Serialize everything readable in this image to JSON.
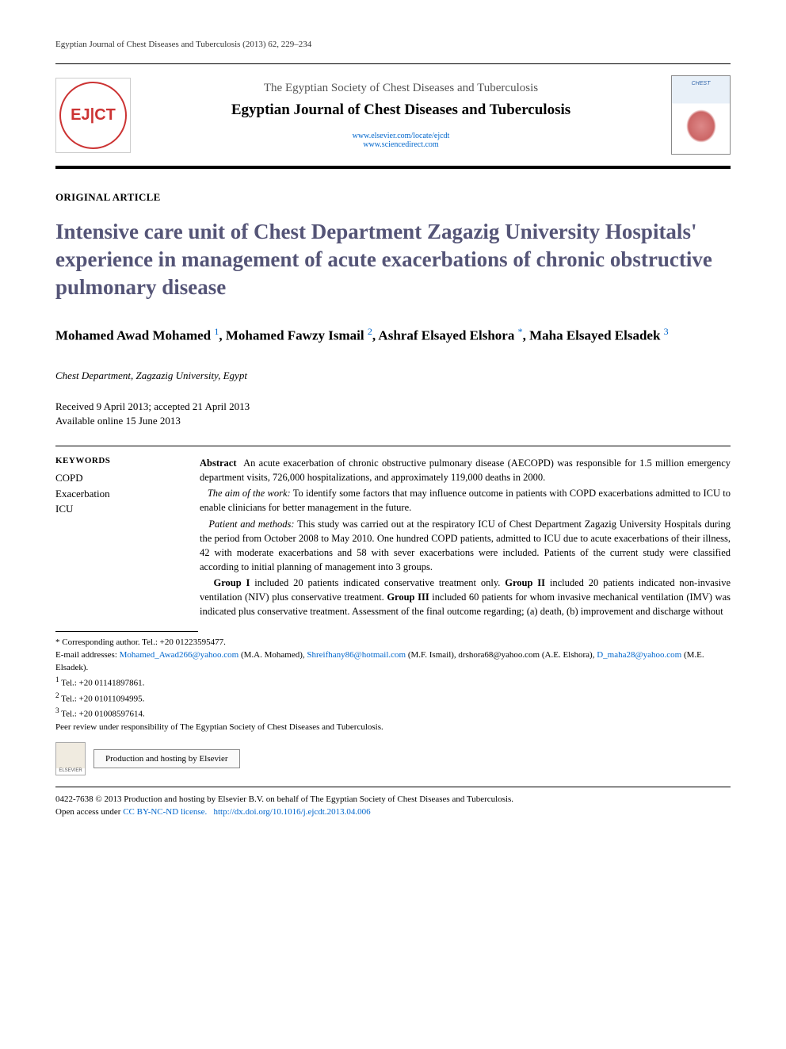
{
  "running_head": "Egyptian Journal of Chest Diseases and Tuberculosis (2013) 62, 229–234",
  "masthead": {
    "logo_text": "EJ|CT",
    "society": "The Egyptian Society of Chest Diseases and Tuberculosis",
    "journal": "Egyptian Journal of Chest Diseases and Tuberculosis",
    "link1": "www.elsevier.com/locate/ejcdt",
    "link2": "www.sciencedirect.com",
    "cover_caption": "CHEST"
  },
  "article_type": "ORIGINAL ARTICLE",
  "title": "Intensive care unit of Chest Department Zagazig University Hospitals' experience in management of acute exacerbations of chronic obstructive pulmonary disease",
  "authors": {
    "a1_name": "Mohamed Awad Mohamed",
    "a1_ref": "1",
    "a2_name": "Mohamed Fawzy Ismail",
    "a2_ref": "2",
    "a3_name": "Ashraf Elsayed Elshora",
    "a3_ref": "*",
    "a4_name": "Maha Elsayed Elsadek",
    "a4_ref": "3"
  },
  "affiliation": "Chest Department, Zagzazig University, Egypt",
  "dates": {
    "received_accepted": "Received 9 April 2013; accepted 21 April 2013",
    "online": "Available online 15 June 2013"
  },
  "keywords": {
    "heading": "KEYWORDS",
    "k1": "COPD",
    "k2": "Exacerbation",
    "k3": "ICU"
  },
  "abstract": {
    "lead": "Abstract",
    "p1": "An acute exacerbation of chronic obstructive pulmonary disease (AECOPD) was responsible for 1.5 million emergency department visits, 726,000 hospitalizations, and approximately 119,000 deaths in 2000.",
    "p2_em": "The aim of the work:",
    "p2": " To identify some factors that may influence outcome in patients with COPD exacerbations admitted to ICU to enable clinicians for better management in the future.",
    "p3_em": "Patient and methods:",
    "p3": " This study was carried out at the respiratory ICU of Chest Department Zagazig University Hospitals during the period from October 2008 to May 2010. One hundred COPD patients, admitted to ICU due to acute exacerbations of their illness, 42 with moderate exacerbations and 58 with sever exacerbations were included. Patients of the current study were classified according to initial planning of management into 3 groups.",
    "p4a": "Group I",
    "p4at": " included 20 patients indicated conservative treatment only. ",
    "p4b": "Group II",
    "p4bt": " included 20 patients indicated non-invasive ventilation (NIV) plus conservative treatment. ",
    "p4c": "Group III",
    "p4ct": " included 60 patients for whom invasive mechanical ventilation (IMV) was indicated plus conservative treatment. Assessment of the final outcome regarding; (a) death, (b) improvement and discharge without"
  },
  "footnotes": {
    "corr_label": "* Corresponding author. Tel.: +20 01223595477.",
    "email_label": "E-mail addresses: ",
    "e1": "Mohamed_Awad266@yahoo.com",
    "e1_who": " (M.A. Mohamed), ",
    "e2": "Shreifhany86@hotmail.com",
    "e2_who": " (M.F. Ismail), ",
    "e3": "drshora68@yahoo.com",
    "e3_who": " (A.E. Elshora), ",
    "e4": "D_maha28@yahoo.com",
    "e4_who": " (M.E. Elsadek).",
    "t1": "Tel.: +20 01141897861.",
    "t2": "Tel.: +20 01011094995.",
    "t3": "Tel.: +20 01008597614.",
    "peer": "Peer review under responsibility of The Egyptian Society of Chest Diseases and Tuberculosis.",
    "elsevier_label": "ELSEVIER",
    "hosting": "Production and hosting by Elsevier"
  },
  "copyright": {
    "line": "0422-7638 © 2013 Production and hosting by Elsevier B.V. on behalf of The Egyptian Society of Chest Diseases and Tuberculosis.",
    "open_prefix": "Open access under ",
    "license": "CC BY-NC-ND license.",
    "doi_label": " http://dx.doi.org/10.1016/j.ejcdt.2013.04.006"
  },
  "colors": {
    "title_color": "#555577",
    "link_color": "#0066cc",
    "logo_red": "#cc3333",
    "rule_black": "#000000",
    "background": "#ffffff"
  },
  "typography": {
    "body_family": "Georgia, Times New Roman, serif",
    "title_size_pt": 20,
    "author_size_pt": 13,
    "body_size_pt": 9.5,
    "footnote_size_pt": 8
  }
}
